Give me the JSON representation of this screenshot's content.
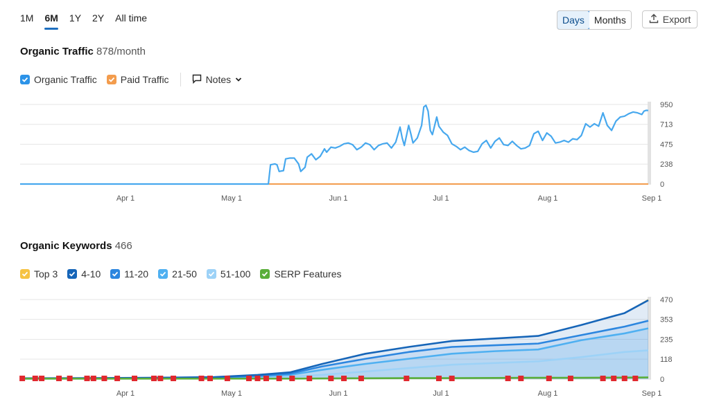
{
  "range_tabs": [
    "1M",
    "6M",
    "1Y",
    "2Y",
    "All time"
  ],
  "range_active": "6M",
  "granularity": {
    "days": "Days",
    "months": "Months",
    "active": "Days"
  },
  "export_label": "Export",
  "colors": {
    "organic": "#47a8ee",
    "paid": "#f39c4d",
    "top3": "#f6c343",
    "k4_10": "#1665b8",
    "k11_20": "#2c86df",
    "k21_50": "#4fb0f1",
    "k51_100": "#9dd2f7",
    "serp": "#5aae3a",
    "marker": "#e0282e",
    "accent": "#1e6fbf"
  },
  "traffic": {
    "title": "Organic Traffic",
    "value": "878/month",
    "legend": {
      "organic": "Organic Traffic",
      "paid": "Paid Traffic",
      "notes": "Notes"
    }
  },
  "keywords": {
    "title": "Organic Keywords",
    "value": "466",
    "legend": [
      "Top 3",
      "4-10",
      "11-20",
      "21-50",
      "51-100",
      "SERP Features"
    ]
  },
  "chart_data": [
    {
      "type": "line",
      "title": "Organic Traffic",
      "x_labels": [
        "Apr 1",
        "May 1",
        "Jun 1",
        "Jul 1",
        "Aug 1",
        "Sep 1"
      ],
      "y_ticks": [
        0,
        238,
        475,
        713,
        950
      ],
      "ylim": [
        0,
        950
      ],
      "series": [
        {
          "name": "Organic Traffic",
          "color": "#47a8ee",
          "points": [
            [
              0,
              0
            ],
            [
              115,
              0
            ],
            [
              116,
              230
            ],
            [
              118,
              240
            ],
            [
              119,
              230
            ],
            [
              120,
              150
            ],
            [
              122,
              160
            ],
            [
              123,
              300
            ],
            [
              125,
              310
            ],
            [
              127,
              310
            ],
            [
              129,
              240
            ],
            [
              130,
              150
            ],
            [
              132,
              200
            ],
            [
              133,
              320
            ],
            [
              135,
              360
            ],
            [
              137,
              290
            ],
            [
              139,
              330
            ],
            [
              141,
              420
            ],
            [
              142,
              380
            ],
            [
              144,
              440
            ],
            [
              146,
              430
            ],
            [
              148,
              450
            ],
            [
              150,
              480
            ],
            [
              152,
              490
            ],
            [
              154,
              470
            ],
            [
              156,
              410
            ],
            [
              158,
              440
            ],
            [
              160,
              490
            ],
            [
              162,
              470
            ],
            [
              164,
              410
            ],
            [
              166,
              460
            ],
            [
              168,
              480
            ],
            [
              170,
              490
            ],
            [
              172,
              430
            ],
            [
              174,
              500
            ],
            [
              176,
              680
            ],
            [
              177,
              550
            ],
            [
              178,
              460
            ],
            [
              180,
              700
            ],
            [
              181,
              600
            ],
            [
              182,
              490
            ],
            [
              184,
              550
            ],
            [
              186,
              700
            ],
            [
              187,
              920
            ],
            [
              188,
              940
            ],
            [
              189,
              870
            ],
            [
              190,
              640
            ],
            [
              191,
              590
            ],
            [
              193,
              800
            ],
            [
              194,
              690
            ],
            [
              196,
              620
            ],
            [
              198,
              580
            ],
            [
              200,
              480
            ],
            [
              202,
              450
            ],
            [
              204,
              410
            ],
            [
              206,
              440
            ],
            [
              208,
              400
            ],
            [
              210,
              380
            ],
            [
              212,
              390
            ],
            [
              214,
              480
            ],
            [
              216,
              520
            ],
            [
              218,
              430
            ],
            [
              220,
              510
            ],
            [
              222,
              550
            ],
            [
              224,
              470
            ],
            [
              226,
              460
            ],
            [
              228,
              510
            ],
            [
              230,
              460
            ],
            [
              232,
              420
            ],
            [
              234,
              430
            ],
            [
              236,
              460
            ],
            [
              238,
              600
            ],
            [
              240,
              630
            ],
            [
              242,
              520
            ],
            [
              244,
              610
            ],
            [
              246,
              570
            ],
            [
              248,
              490
            ],
            [
              250,
              500
            ],
            [
              252,
              520
            ],
            [
              254,
              500
            ],
            [
              256,
              540
            ],
            [
              258,
              530
            ],
            [
              260,
              580
            ],
            [
              262,
              720
            ],
            [
              264,
              680
            ],
            [
              266,
              720
            ],
            [
              268,
              690
            ],
            [
              270,
              850
            ],
            [
              272,
              700
            ],
            [
              274,
              640
            ],
            [
              276,
              750
            ],
            [
              278,
              800
            ],
            [
              280,
              810
            ],
            [
              282,
              840
            ],
            [
              284,
              860
            ],
            [
              286,
              850
            ],
            [
              288,
              830
            ],
            [
              289,
              870
            ],
            [
              290,
              880
            ],
            [
              291,
              878
            ]
          ]
        },
        {
          "name": "Paid Traffic",
          "color": "#f39c4d",
          "points": [
            [
              0,
              0
            ],
            [
              291,
              0
            ]
          ]
        }
      ]
    },
    {
      "type": "area",
      "title": "Organic Keywords",
      "x_labels": [
        "Apr 1",
        "May 1",
        "Jun 1",
        "Jul 1",
        "Aug 1",
        "Sep 1"
      ],
      "y_ticks": [
        0,
        118,
        235,
        353,
        470
      ],
      "ylim": [
        0,
        470
      ],
      "x": [
        0,
        30,
        60,
        90,
        110,
        125,
        140,
        160,
        180,
        200,
        220,
        240,
        260,
        280,
        291
      ],
      "series": [
        {
          "name": "Top 3",
          "values": [
            5,
            6,
            8,
            12,
            25,
            40,
            90,
            150,
            190,
            225,
            240,
            255,
            320,
            390,
            470
          ]
        },
        {
          "name": "4-10",
          "values": [
            5,
            6,
            8,
            12,
            25,
            40,
            90,
            150,
            190,
            225,
            240,
            255,
            320,
            390,
            466
          ]
        },
        {
          "name": "11-20",
          "values": [
            4,
            5,
            6,
            10,
            20,
            32,
            75,
            120,
            160,
            190,
            200,
            210,
            260,
            310,
            345
          ]
        },
        {
          "name": "21-50",
          "values": [
            3,
            4,
            5,
            8,
            15,
            25,
            55,
            90,
            120,
            150,
            165,
            175,
            230,
            270,
            300
          ]
        },
        {
          "name": "51-100",
          "values": [
            2,
            2,
            3,
            5,
            8,
            14,
            25,
            45,
            65,
            85,
            95,
            105,
            130,
            160,
            170
          ]
        },
        {
          "name": "SERP Features",
          "values": [
            3,
            3,
            3,
            3,
            3,
            3,
            4,
            5,
            6,
            6,
            7,
            8,
            8,
            9,
            10
          ]
        }
      ],
      "markers_x": [
        1,
        7,
        10,
        18,
        23,
        31,
        34,
        39,
        45,
        53,
        62,
        65,
        71,
        84,
        88,
        96,
        106,
        110,
        114,
        120,
        126,
        134,
        144,
        150,
        158,
        179,
        194,
        200,
        226,
        232,
        245,
        255,
        270,
        275,
        280,
        285
      ]
    }
  ]
}
